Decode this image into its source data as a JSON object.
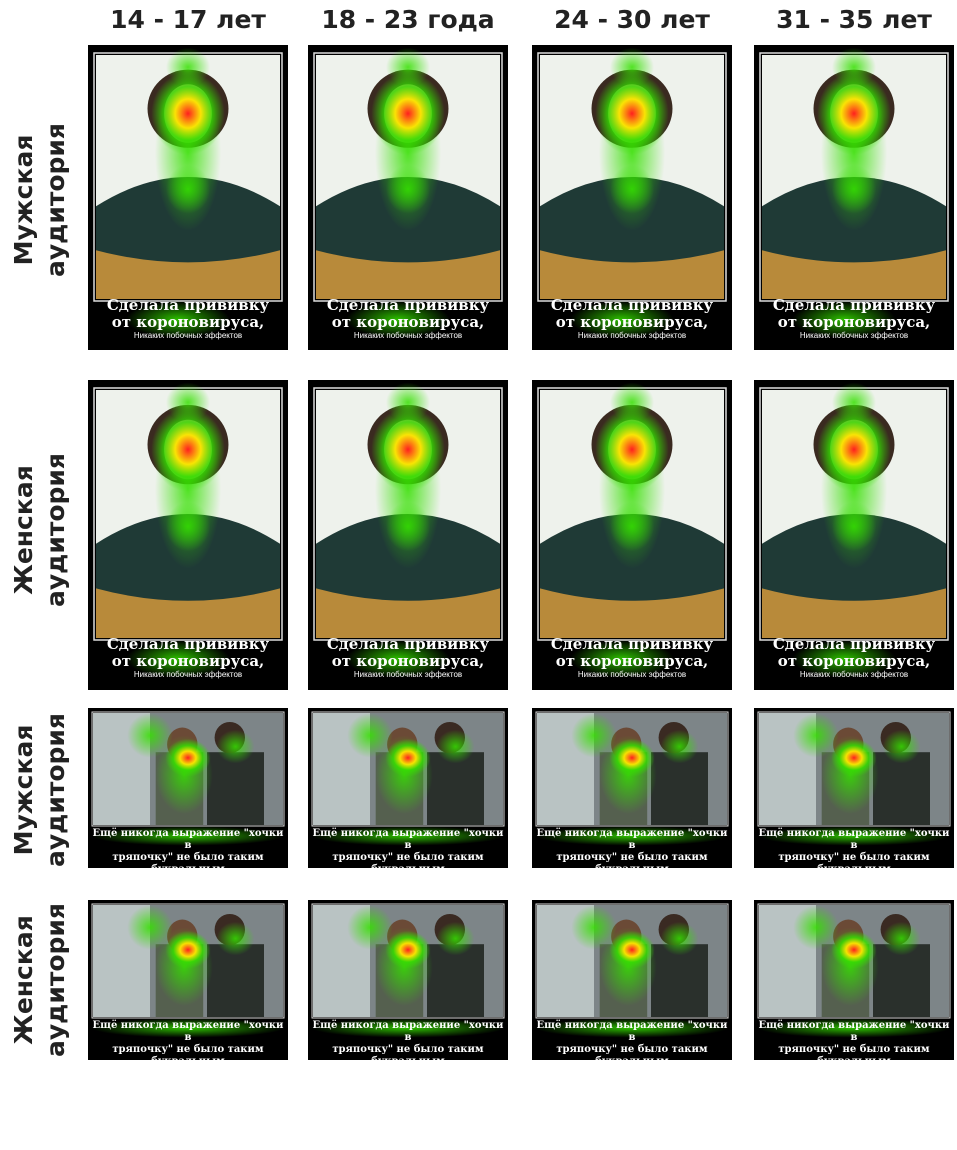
{
  "column_headers": [
    "14 - 17 лет",
    "18 - 23 года",
    "24 - 30 лет",
    "31 - 35 лет"
  ],
  "row_headers": [
    [
      "Мужская",
      "аудитория"
    ],
    [
      "Женская",
      "аудитория"
    ],
    [
      "Мужская",
      "аудитория"
    ],
    [
      "Женская",
      "аудитория"
    ]
  ],
  "captions": {
    "poster_a": {
      "line1": "Сделала прививку",
      "line2": "от короновируса,",
      "small": "Никаких побочных эффектов"
    },
    "poster_b": {
      "line1": "Ещё никогда выражение \"хочки в",
      "line2": "тряпочку\" не было таким",
      "line3": "буквальным"
    }
  },
  "colors": {
    "heat_hot": "#ff1f1f",
    "heat_warm": "#ffe600",
    "heat_cool": "#35e000",
    "frame": "#000000",
    "text": "#222222"
  }
}
